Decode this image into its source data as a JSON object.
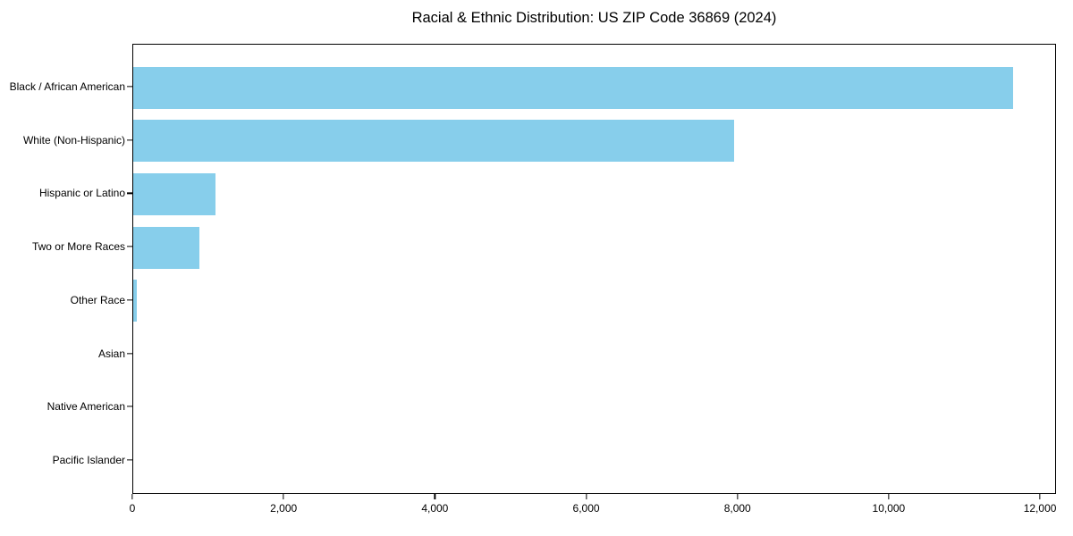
{
  "chart_data": {
    "type": "bar",
    "orientation": "horizontal",
    "title": "Racial & Ethnic Distribution: US ZIP Code 36869 (2024)",
    "categories": [
      "Black / African American",
      "White (Non-Hispanic)",
      "Hispanic or Latino",
      "Two or More Races",
      "Other Race",
      "Asian",
      "Native American",
      "Pacific Islander"
    ],
    "values": [
      11630,
      7940,
      1090,
      870,
      50,
      0,
      0,
      0
    ],
    "xlabel": "",
    "ylabel": "",
    "xlim": [
      0,
      12212
    ],
    "xticks": [
      0,
      2000,
      4000,
      6000,
      8000,
      10000,
      12000
    ],
    "xtick_labels": [
      "0",
      "2,000",
      "4,000",
      "6,000",
      "8,000",
      "10,000",
      "12,000"
    ],
    "grid": false,
    "legend": "none",
    "bar_color": "#87CEEB",
    "spine_color": "#000000",
    "text_color": "#000000"
  }
}
